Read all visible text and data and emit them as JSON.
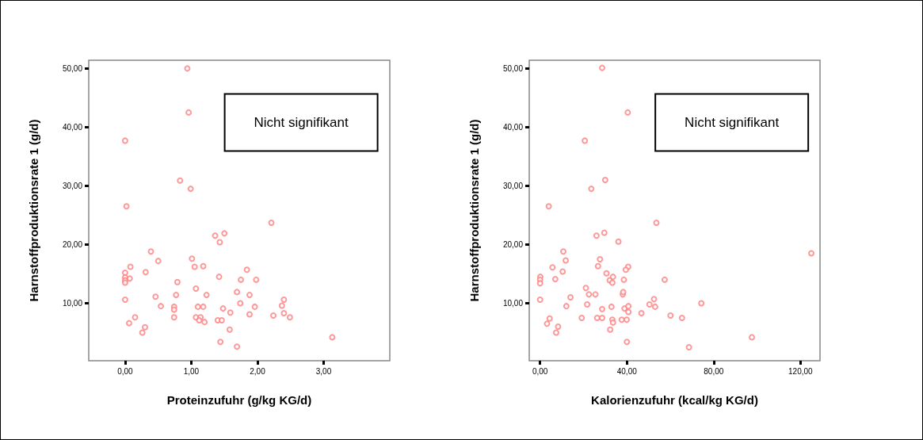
{
  "chart_data": [
    {
      "type": "scatter",
      "xlabel": "Proteinzufuhr (g/kg KG/d)",
      "ylabel": "Harnstoffproduktionsrate 1 (g/d)",
      "annotations": [
        "Nicht signifikant"
      ],
      "marker": "circle",
      "grid": false,
      "xlim": [
        -0.55,
        4.0
      ],
      "ylim": [
        0.2,
        51.4
      ],
      "xticks": [
        {
          "value": 0,
          "label": "0,00"
        },
        {
          "value": 1,
          "label": "1,00"
        },
        {
          "value": 2,
          "label": "2,00"
        },
        {
          "value": 3,
          "label": "3,00"
        }
      ],
      "yticks": [
        {
          "value": 10,
          "label": "10,00"
        },
        {
          "value": 20,
          "label": "20,00"
        },
        {
          "value": 30,
          "label": "30,00"
        },
        {
          "value": 40,
          "label": "40,00"
        },
        {
          "value": 50,
          "label": "50,00"
        }
      ],
      "series": [
        {
          "color": "#ff7f7f",
          "x": [
            0.94,
            0.96,
            0.0,
            0.83,
            0.99,
            0.02,
            2.21,
            1.36,
            1.5,
            1.43,
            0.39,
            0.5,
            1.01,
            0.08,
            1.05,
            1.18,
            1.84,
            0.31,
            0.0,
            0.0,
            0.0,
            0.0,
            0.07,
            1.42,
            1.75,
            1.98,
            0.79,
            1.07,
            0.46,
            0.77,
            1.23,
            1.69,
            1.88,
            0.0,
            1.74,
            2.4,
            2.37,
            0.54,
            0.74,
            0.74,
            1.1,
            1.18,
            1.48,
            1.96,
            1.59,
            1.88,
            2.24,
            2.4,
            2.49,
            0.15,
            0.74,
            1.07,
            1.14,
            1.12,
            1.2,
            1.4,
            1.46,
            0.06,
            0.3,
            0.26,
            1.58,
            1.44,
            1.69,
            3.13
          ],
          "values": [
            50.0,
            42.5,
            37.7,
            30.9,
            29.5,
            26.5,
            23.7,
            21.5,
            21.9,
            20.4,
            18.8,
            17.2,
            17.6,
            16.2,
            16.2,
            16.3,
            15.7,
            15.3,
            15.2,
            14.4,
            13.9,
            13.5,
            14.2,
            14.5,
            14.0,
            14.0,
            13.6,
            12.5,
            11.1,
            11.4,
            11.4,
            11.9,
            11.4,
            10.6,
            10.0,
            10.6,
            9.6,
            9.5,
            9.4,
            8.9,
            9.4,
            9.4,
            9.1,
            9.4,
            8.4,
            8.1,
            7.9,
            8.3,
            7.6,
            7.6,
            7.6,
            7.6,
            7.6,
            7.1,
            6.8,
            7.1,
            7.1,
            6.6,
            5.9,
            5.0,
            5.5,
            3.4,
            2.6,
            4.2
          ]
        }
      ]
    },
    {
      "type": "scatter",
      "xlabel": "Kalorienzufuhr (kcal/kg KG/d)",
      "ylabel": "Harnstoffproduktionsrate 1 (g/d)",
      "annotations": [
        "Nicht signifikant"
      ],
      "marker": "circle",
      "grid": false,
      "xlim": [
        -5,
        129
      ],
      "ylim": [
        0.2,
        51.4
      ],
      "xticks": [
        {
          "value": 0,
          "label": "0,00"
        },
        {
          "value": 40,
          "label": "40,00"
        },
        {
          "value": 80,
          "label": "80,00"
        },
        {
          "value": 120,
          "label": "120,00"
        }
      ],
      "yticks": [
        {
          "value": 10,
          "label": "10,00"
        },
        {
          "value": 20,
          "label": "20,00"
        },
        {
          "value": 30,
          "label": "30,00"
        },
        {
          "value": 40,
          "label": "40,00"
        },
        {
          "value": 50,
          "label": "50,00"
        }
      ],
      "series": [
        {
          "color": "#ff7f7f",
          "x": [
            28.6,
            40.4,
            20.6,
            30.0,
            23.6,
            4.0,
            53.6,
            26.0,
            29.6,
            36.1,
            10.7,
            125.0,
            11.8,
            27.6,
            5.7,
            26.7,
            40.6,
            39.5,
            10.4,
            30.6,
            0.1,
            0.0,
            0.0,
            7.0,
            32.1,
            33.6,
            33.3,
            38.6,
            57.4,
            21.1,
            22.5,
            25.5,
            38.1,
            38.3,
            14.0,
            0.0,
            52.5,
            12.1,
            21.7,
            32.9,
            28.6,
            50.4,
            53.0,
            74.3,
            38.9,
            40.7,
            40.7,
            46.7,
            60.1,
            65.4,
            19.2,
            26.3,
            28.6,
            33.3,
            33.6,
            37.6,
            39.9,
            3.2,
            4.4,
            8.3,
            7.4,
            32.3,
            40.0,
            68.6,
            97.6
          ],
          "values": [
            50.1,
            42.5,
            37.7,
            31.0,
            29.5,
            26.5,
            23.7,
            21.5,
            22.0,
            20.5,
            18.8,
            18.5,
            17.3,
            17.5,
            16.1,
            16.3,
            16.2,
            15.7,
            15.4,
            15.1,
            14.5,
            14.0,
            13.4,
            14.1,
            13.9,
            14.5,
            13.5,
            14.0,
            14.0,
            12.6,
            11.5,
            11.5,
            11.5,
            11.9,
            11.0,
            10.6,
            10.7,
            9.5,
            9.8,
            9.4,
            9.0,
            9.8,
            9.4,
            10.0,
            9.1,
            9.5,
            8.5,
            8.3,
            7.9,
            7.5,
            7.5,
            7.5,
            7.5,
            7.2,
            6.7,
            7.2,
            7.2,
            6.5,
            7.4,
            6.0,
            5.0,
            5.5,
            3.4,
            2.5,
            4.2
          ]
        }
      ]
    }
  ]
}
